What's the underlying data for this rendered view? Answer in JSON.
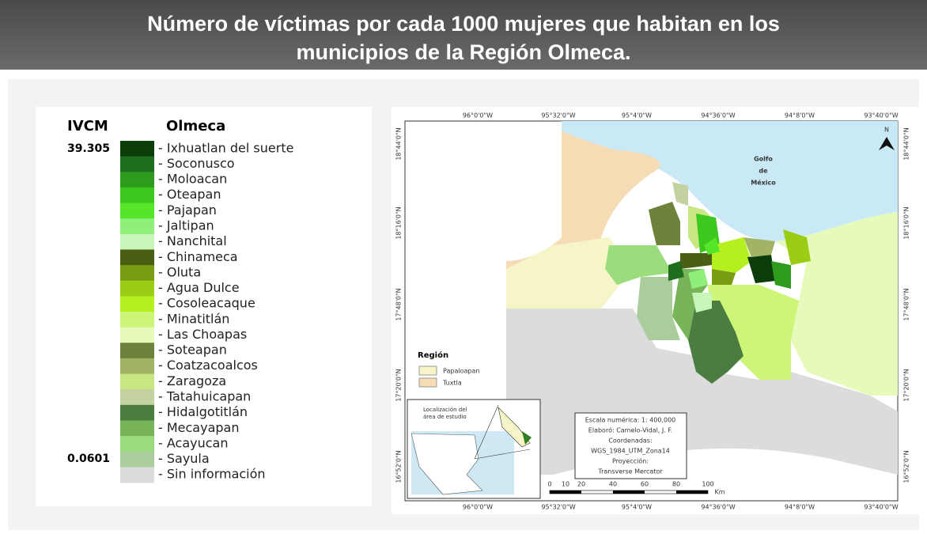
{
  "header": {
    "title_lines": [
      "Número de víctimas por cada 1000 mujeres que habitan en los",
      "municipios de la Región Olmeca."
    ]
  },
  "legend": {
    "index_label": "IVCM",
    "region_label": "Olmeca",
    "max": "39.305",
    "min": "0.0601",
    "items": [
      {
        "name": "- Ixhuatlan del suerte",
        "color": "#0b3d0b"
      },
      {
        "name": "- Soconusco",
        "color": "#1f6e1f"
      },
      {
        "name": "- Moloacan",
        "color": "#2e9b1e"
      },
      {
        "name": "- Oteapan",
        "color": "#3cc81e"
      },
      {
        "name": "- Pajapan",
        "color": "#55e62a"
      },
      {
        "name": "- Jaltipan",
        "color": "#8ef07a"
      },
      {
        "name": "- Nanchital",
        "color": "#c8f5b8"
      },
      {
        "name": "- Chinameca",
        "color": "#4a5e14"
      },
      {
        "name": "- Oluta",
        "color": "#789c14"
      },
      {
        "name": "- Agua Dulce",
        "color": "#9bcd14"
      },
      {
        "name": "- Cosoleacaque",
        "color": "#b4f01e"
      },
      {
        "name": "- Minatitlán",
        "color": "#cdf578"
      },
      {
        "name": "- Las Choapas",
        "color": "#e6fab9"
      },
      {
        "name": "- Soteapan",
        "color": "#6e823c"
      },
      {
        "name": "- Coatzacoalcos",
        "color": "#a0b464"
      },
      {
        "name": "- Zaragoza",
        "color": "#c8e682"
      },
      {
        "name": "- Tatahuicapan",
        "color": "#c3d2a0"
      },
      {
        "name": "- Hidalgotitlán",
        "color": "#4b7d41"
      },
      {
        "name": "- Mecayapan",
        "color": "#78b45a"
      },
      {
        "name": "- Acayucan",
        "color": "#9bdc7d"
      },
      {
        "name": "- Sayula",
        "color": "#aacd9b"
      },
      {
        "name": "- Sin información",
        "color": "#dcdcdc"
      }
    ]
  },
  "map": {
    "lon_labels": [
      "96°0'0\"W",
      "95°32'0\"W",
      "95°4'0\"W",
      "94°36'0\"W",
      "94°8'0\"W",
      "93°40'0\"W"
    ],
    "lat_labels": [
      "18°44'0\"N",
      "18°16'0\"N",
      "17°48'0\"N",
      "17°20'0\"N",
      "16°52'0\"N"
    ],
    "sea_label": [
      "Golfo",
      "de",
      "México"
    ],
    "north": "N",
    "region_legend": {
      "title": "Región",
      "items": [
        {
          "name": "Papaloapan",
          "color": "#f5f5c8"
        },
        {
          "name": "Tuxtla",
          "color": "#f5dcb4"
        }
      ]
    },
    "inset_label": [
      "Localización del",
      "área de estudio"
    ],
    "info": [
      "Escala numérica: 1: 400,000",
      "Elaboró: Camelo-Vidal, J. F.",
      "Coordenadas:",
      "WGS_1984_UTM_Zona14",
      "Proyección:",
      "Transverse Mercator"
    ],
    "scale": [
      "0",
      "10",
      "20",
      "40",
      "60",
      "80",
      "100",
      "Km"
    ]
  }
}
